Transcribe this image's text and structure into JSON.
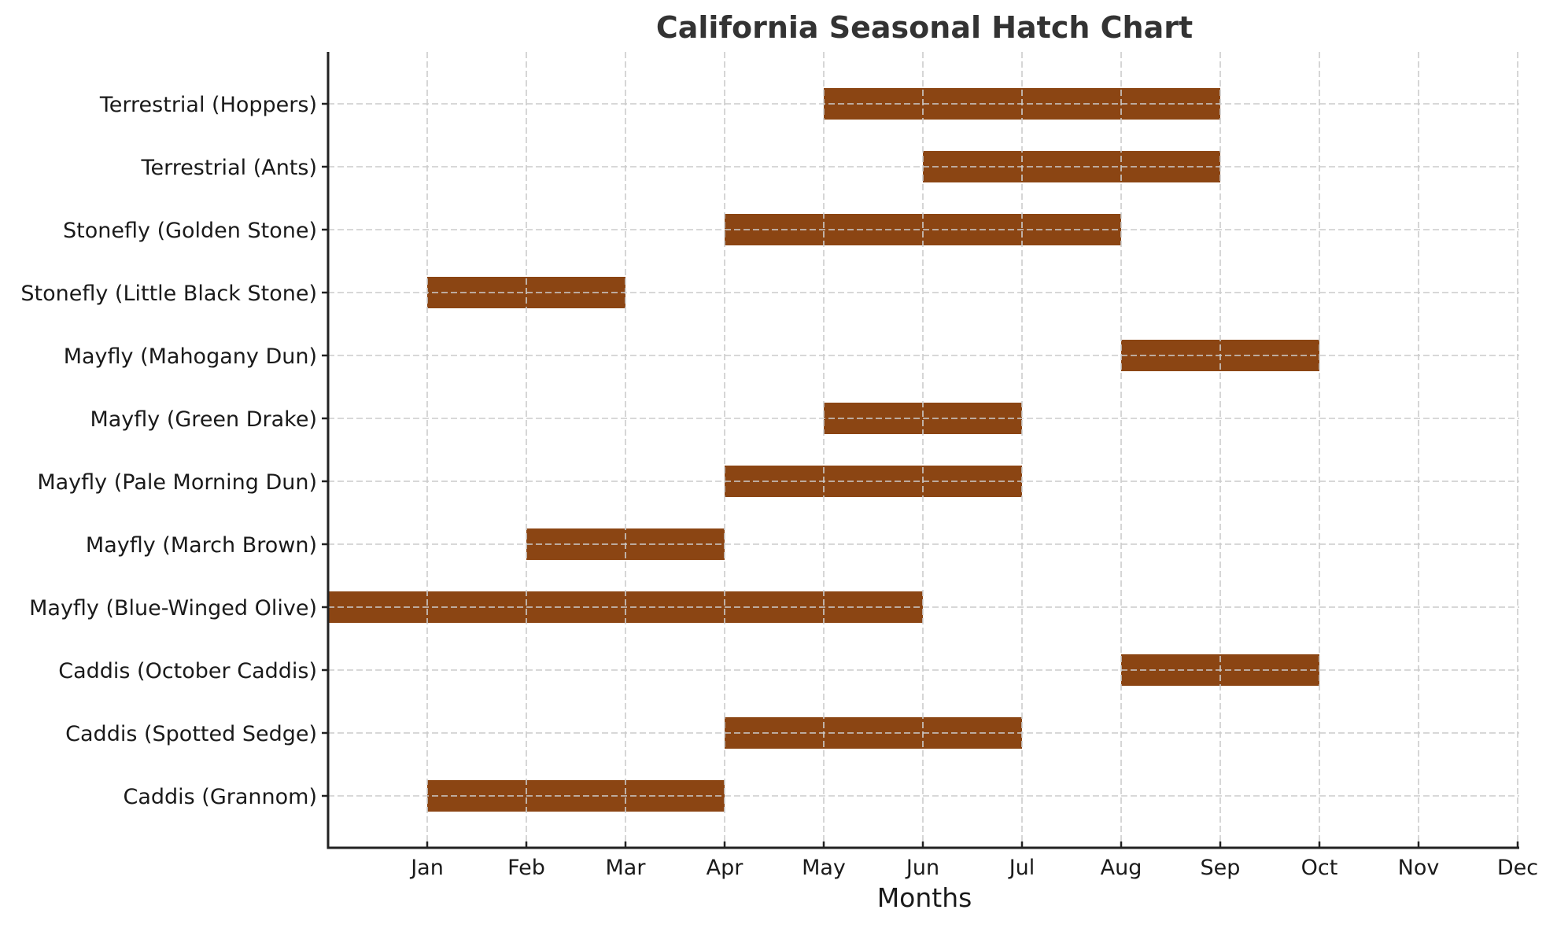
{
  "chart_data": {
    "type": "bar",
    "orientation": "horizontal-range",
    "title": "California Seasonal Hatch Chart",
    "xlabel": "Months",
    "ylabel": "",
    "xlim": [
      0,
      12
    ],
    "x_ticks": [
      1,
      2,
      3,
      4,
      5,
      6,
      7,
      8,
      9,
      10,
      11,
      12
    ],
    "x_tick_labels": [
      "Jan",
      "Feb",
      "Mar",
      "Apr",
      "May",
      "Jun",
      "Jul",
      "Aug",
      "Sep",
      "Oct",
      "Nov",
      "Dec"
    ],
    "grid": true,
    "grid_style": "dashed",
    "legend": null,
    "bar_color": "#8B4513",
    "categories": [
      "Caddis (Grannom)",
      "Caddis (Spotted Sedge)",
      "Caddis (October Caddis)",
      "Mayfly (Blue-Winged Olive)",
      "Mayfly (March Brown)",
      "Mayfly (Pale Morning Dun)",
      "Mayfly (Green Drake)",
      "Mayfly (Mahogany Dun)",
      "Stonefly (Little Black Stone)",
      "Stonefly (Golden Stone)",
      "Terrestrial (Ants)",
      "Terrestrial (Hoppers)"
    ],
    "bars": [
      {
        "label": "Caddis (Grannom)",
        "start": 1,
        "end": 4,
        "start_label": "Jan",
        "end_label": "Apr"
      },
      {
        "label": "Caddis (Spotted Sedge)",
        "start": 4,
        "end": 7,
        "start_label": "Apr",
        "end_label": "Jul"
      },
      {
        "label": "Caddis (October Caddis)",
        "start": 8,
        "end": 10,
        "start_label": "Aug",
        "end_label": "Oct"
      },
      {
        "label": "Mayfly (Blue-Winged Olive)",
        "start": 0,
        "end": 6,
        "start_label": "",
        "end_label": "Jun"
      },
      {
        "label": "Mayfly (March Brown)",
        "start": 2,
        "end": 4,
        "start_label": "Feb",
        "end_label": "Apr"
      },
      {
        "label": "Mayfly (Pale Morning Dun)",
        "start": 4,
        "end": 7,
        "start_label": "Apr",
        "end_label": "Jul"
      },
      {
        "label": "Mayfly (Green Drake)",
        "start": 5,
        "end": 7,
        "start_label": "May",
        "end_label": "Jul"
      },
      {
        "label": "Mayfly (Mahogany Dun)",
        "start": 8,
        "end": 10,
        "start_label": "Aug",
        "end_label": "Oct"
      },
      {
        "label": "Stonefly (Little Black Stone)",
        "start": 1,
        "end": 3,
        "start_label": "Jan",
        "end_label": "Mar"
      },
      {
        "label": "Stonefly (Golden Stone)",
        "start": 4,
        "end": 8,
        "start_label": "Apr",
        "end_label": "Aug"
      },
      {
        "label": "Terrestrial (Ants)",
        "start": 6,
        "end": 9,
        "start_label": "Jun",
        "end_label": "Sep"
      },
      {
        "label": "Terrestrial (Hoppers)",
        "start": 5,
        "end": 9,
        "start_label": "May",
        "end_label": "Sep"
      }
    ]
  },
  "colors": {
    "bar": "#8B4513",
    "grid": "#cccccc",
    "spine": "#222222",
    "title": "#333333",
    "text": "#1a1a1a"
  }
}
